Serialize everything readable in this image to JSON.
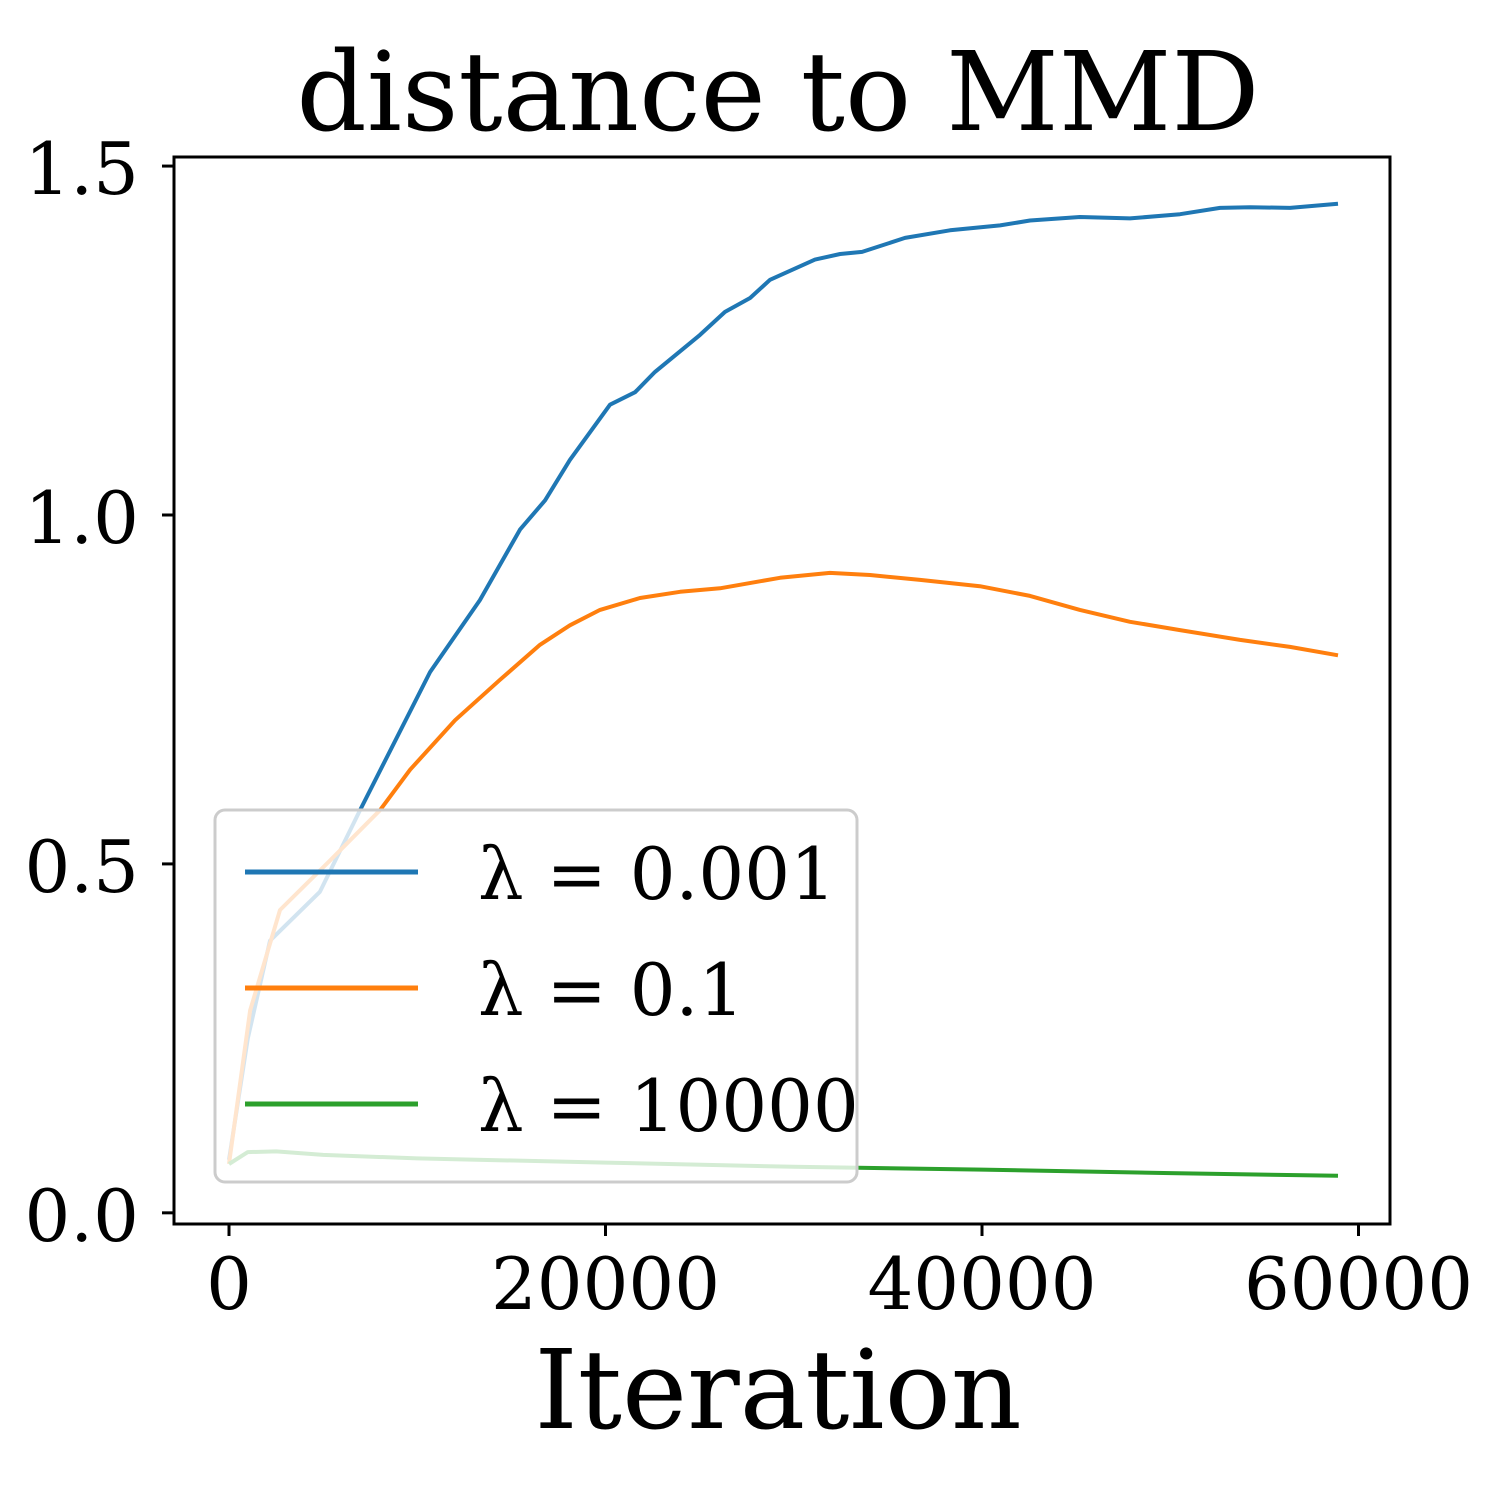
{
  "chart_data": {
    "type": "line",
    "title": "distance to MMD",
    "xlabel": "Iteration",
    "ylabel": "",
    "xlim": [
      -2922,
      61673
    ],
    "ylim": [
      -0.016,
      1.513
    ],
    "xticks": [
      0,
      20000,
      40000,
      60000
    ],
    "xtick_labels": [
      "0",
      "20000",
      "40000",
      "60000"
    ],
    "yticks": [
      0.0,
      0.5,
      1.0,
      1.5
    ],
    "ytick_labels": [
      "0.0",
      "0.5",
      "1.0",
      "1.5"
    ],
    "grid": false,
    "legend_placement": "lower-left",
    "series": [
      {
        "name": "λ = 0.001",
        "color": "#1f77b4",
        "x": [
          0,
          1000,
          2180,
          4830,
          6960,
          10680,
          13330,
          15460,
          16790,
          18110,
          20240,
          21570,
          22630,
          25020,
          26350,
          27680,
          28740,
          31130,
          32460,
          33630,
          35910,
          38300,
          40960,
          42550,
          45200,
          47860,
          50520,
          52640,
          54240,
          56360,
          58910
        ],
        "y": [
          0.076,
          0.25,
          0.39,
          0.46,
          0.577,
          0.775,
          0.878,
          0.979,
          1.021,
          1.079,
          1.158,
          1.176,
          1.205,
          1.258,
          1.291,
          1.311,
          1.337,
          1.366,
          1.374,
          1.377,
          1.397,
          1.408,
          1.415,
          1.422,
          1.427,
          1.425,
          1.431,
          1.44,
          1.441,
          1.44,
          1.446
        ]
      },
      {
        "name": "λ = 0.1",
        "color": "#ff7f0e",
        "x": [
          0,
          1120,
          2710,
          5370,
          8020,
          9620,
          12010,
          14400,
          16520,
          18110,
          19710,
          21830,
          23960,
          26080,
          29270,
          31920,
          34050,
          36710,
          39890,
          42550,
          45200,
          47860,
          50520,
          53710,
          56360,
          58910
        ],
        "y": [
          0.07,
          0.29,
          0.434,
          0.505,
          0.577,
          0.635,
          0.706,
          0.764,
          0.814,
          0.842,
          0.864,
          0.881,
          0.89,
          0.895,
          0.91,
          0.917,
          0.914,
          0.907,
          0.898,
          0.884,
          0.864,
          0.847,
          0.835,
          0.821,
          0.811,
          0.799
        ]
      },
      {
        "name": "λ = 10000",
        "color": "#2ca02c",
        "x": [
          0,
          1000,
          2500,
          5000,
          10000,
          20000,
          30000,
          40000,
          50000,
          58910
        ],
        "y": [
          0.07,
          0.087,
          0.088,
          0.083,
          0.078,
          0.072,
          0.066,
          0.062,
          0.057,
          0.053
        ]
      }
    ]
  }
}
